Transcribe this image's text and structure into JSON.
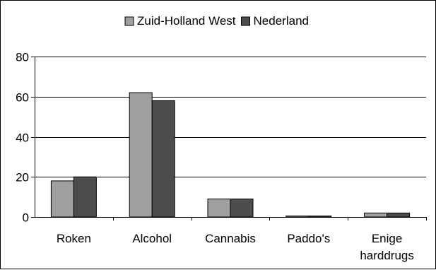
{
  "chart_data": {
    "type": "bar",
    "categories": [
      [
        "Roken"
      ],
      [
        "Alcohol"
      ],
      [
        "Cannabis"
      ],
      [
        "Paddo's"
      ],
      [
        "Enige",
        "harddrugs"
      ]
    ],
    "series": [
      {
        "name": "Zuid-Holland West",
        "color": "#a0a0a0",
        "values": [
          18,
          62,
          9,
          0.5,
          2
        ]
      },
      {
        "name": "Nederland",
        "color": "#4d4d4d",
        "values": [
          20,
          58,
          9,
          0.5,
          2
        ]
      }
    ],
    "ylim": [
      0,
      80
    ],
    "yticks": [
      0,
      20,
      40,
      60,
      80
    ],
    "grid": true,
    "legend_position": "top-center",
    "title": "",
    "xlabel": "",
    "ylabel": ""
  }
}
